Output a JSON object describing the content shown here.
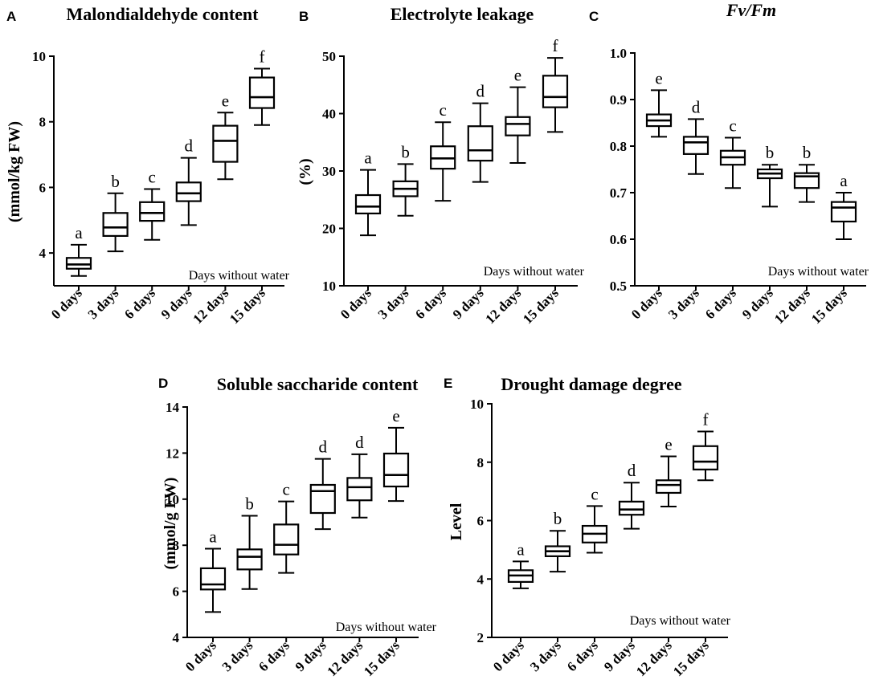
{
  "x_note": "Days without water",
  "chart_data": [
    {
      "panel": "A",
      "type": "box",
      "title": "Malondialdehyde content",
      "title_italic": false,
      "ylabel": "(mmol/kg FW)",
      "ylim": [
        3,
        10
      ],
      "yticks": [
        4,
        6,
        8,
        10
      ],
      "tick_labels": [
        "4",
        "6",
        "8",
        "10"
      ],
      "xlabel": "Days without water",
      "categories": [
        "0 days",
        "3 days",
        "6 days",
        "9 days",
        "12 days",
        "15 days"
      ],
      "boxes": [
        {
          "min": 3.3,
          "q1": 3.52,
          "median": 3.65,
          "q3": 3.85,
          "max": 4.25,
          "letter": "a"
        },
        {
          "min": 4.05,
          "q1": 4.52,
          "median": 4.78,
          "q3": 5.22,
          "max": 5.82,
          "letter": "b"
        },
        {
          "min": 4.4,
          "q1": 4.98,
          "median": 5.22,
          "q3": 5.55,
          "max": 5.95,
          "letter": "c"
        },
        {
          "min": 4.85,
          "q1": 5.58,
          "median": 5.82,
          "q3": 6.15,
          "max": 6.9,
          "letter": "d"
        },
        {
          "min": 6.25,
          "q1": 6.78,
          "median": 7.42,
          "q3": 7.88,
          "max": 8.28,
          "letter": "e"
        },
        {
          "min": 7.9,
          "q1": 8.42,
          "median": 8.75,
          "q3": 9.35,
          "max": 9.62,
          "letter": "f"
        }
      ]
    },
    {
      "panel": "B",
      "type": "box",
      "title": "Electrolyte leakage",
      "title_italic": false,
      "ylabel": "(%)",
      "ylim": [
        10,
        50
      ],
      "yticks": [
        10,
        20,
        30,
        40,
        50
      ],
      "tick_labels": [
        "10",
        "20",
        "30",
        "40",
        "50"
      ],
      "xlabel": "Days without water",
      "categories": [
        "0 days",
        "3 days",
        "6 days",
        "9 days",
        "12 days",
        "15 days"
      ],
      "boxes": [
        {
          "min": 18.8,
          "q1": 22.6,
          "median": 23.8,
          "q3": 25.8,
          "max": 30.2,
          "letter": "a"
        },
        {
          "min": 22.2,
          "q1": 25.6,
          "median": 26.9,
          "q3": 28.2,
          "max": 31.2,
          "letter": "b"
        },
        {
          "min": 24.8,
          "q1": 30.4,
          "median": 32.2,
          "q3": 34.3,
          "max": 38.5,
          "letter": "c"
        },
        {
          "min": 28.1,
          "q1": 31.8,
          "median": 33.6,
          "q3": 37.8,
          "max": 41.8,
          "letter": "d"
        },
        {
          "min": 31.4,
          "q1": 36.2,
          "median": 38.2,
          "q3": 39.4,
          "max": 44.6,
          "letter": "e"
        },
        {
          "min": 36.8,
          "q1": 41.1,
          "median": 42.9,
          "q3": 46.6,
          "max": 49.7,
          "letter": "f"
        }
      ]
    },
    {
      "panel": "C",
      "type": "box",
      "title": "Fv/Fm",
      "title_italic": true,
      "ylabel": "",
      "ylim": [
        0.5,
        1.0
      ],
      "yticks": [
        0.5,
        0.6,
        0.7,
        0.8,
        0.9,
        1.0
      ],
      "tick_labels": [
        "0.5",
        "0.6",
        "0.7",
        "0.8",
        "0.9",
        "1.0"
      ],
      "xlabel": "Days without water",
      "categories": [
        "0 days",
        "3 days",
        "6 days",
        "9 days",
        "12 days",
        "15 days"
      ],
      "boxes": [
        {
          "min": 0.82,
          "q1": 0.843,
          "median": 0.855,
          "q3": 0.868,
          "max": 0.92,
          "letter": "e"
        },
        {
          "min": 0.74,
          "q1": 0.783,
          "median": 0.808,
          "q3": 0.82,
          "max": 0.858,
          "letter": "d"
        },
        {
          "min": 0.71,
          "q1": 0.76,
          "median": 0.776,
          "q3": 0.79,
          "max": 0.818,
          "letter": "c"
        },
        {
          "min": 0.67,
          "q1": 0.731,
          "median": 0.741,
          "q3": 0.75,
          "max": 0.76,
          "letter": "b"
        },
        {
          "min": 0.68,
          "q1": 0.71,
          "median": 0.735,
          "q3": 0.742,
          "max": 0.76,
          "letter": "b"
        },
        {
          "min": 0.6,
          "q1": 0.638,
          "median": 0.668,
          "q3": 0.68,
          "max": 0.7,
          "letter": "a"
        }
      ]
    },
    {
      "panel": "D",
      "type": "box",
      "title": "Soluble  saccharide content",
      "title_italic": false,
      "ylabel": "(mmol/g FW)",
      "ylim": [
        4,
        14
      ],
      "yticks": [
        4,
        6,
        8,
        10,
        12,
        14
      ],
      "tick_labels": [
        "4",
        "6",
        "8",
        "10",
        "12",
        "14"
      ],
      "xlabel": "Days without water",
      "categories": [
        "0 days",
        "3 days",
        "6 days",
        "9 days",
        "12 days",
        "15 days"
      ],
      "boxes": [
        {
          "min": 5.1,
          "q1": 6.08,
          "median": 6.3,
          "q3": 7.0,
          "max": 7.85,
          "letter": "a"
        },
        {
          "min": 6.1,
          "q1": 6.95,
          "median": 7.5,
          "q3": 7.82,
          "max": 9.28,
          "letter": "b"
        },
        {
          "min": 6.8,
          "q1": 7.6,
          "median": 8.02,
          "q3": 8.9,
          "max": 9.9,
          "letter": "c"
        },
        {
          "min": 8.7,
          "q1": 9.4,
          "median": 10.35,
          "q3": 10.62,
          "max": 11.75,
          "letter": "d"
        },
        {
          "min": 9.2,
          "q1": 9.95,
          "median": 10.52,
          "q3": 10.92,
          "max": 11.95,
          "letter": "d"
        },
        {
          "min": 9.92,
          "q1": 10.55,
          "median": 11.05,
          "q3": 11.98,
          "max": 13.1,
          "letter": "e"
        }
      ]
    },
    {
      "panel": "E",
      "type": "box",
      "title": "Drought damage degree",
      "title_italic": false,
      "ylabel": "Level",
      "ylim": [
        2,
        10
      ],
      "yticks": [
        2,
        4,
        6,
        8,
        10
      ],
      "tick_labels": [
        "2",
        "4",
        "6",
        "8",
        "10"
      ],
      "xlabel": "Days without water",
      "categories": [
        "0 days",
        "3 days",
        "6 days",
        "9 days",
        "12 days",
        "15 days"
      ],
      "boxes": [
        {
          "min": 3.68,
          "q1": 3.9,
          "median": 4.12,
          "q3": 4.3,
          "max": 4.6,
          "letter": "a"
        },
        {
          "min": 4.25,
          "q1": 4.78,
          "median": 4.95,
          "q3": 5.12,
          "max": 5.65,
          "letter": "b"
        },
        {
          "min": 4.9,
          "q1": 5.25,
          "median": 5.55,
          "q3": 5.82,
          "max": 6.5,
          "letter": "c"
        },
        {
          "min": 5.72,
          "q1": 6.2,
          "median": 6.38,
          "q3": 6.65,
          "max": 7.3,
          "letter": "d"
        },
        {
          "min": 6.48,
          "q1": 6.95,
          "median": 7.22,
          "q3": 7.38,
          "max": 8.2,
          "letter": "e"
        },
        {
          "min": 7.38,
          "q1": 7.75,
          "median": 8.02,
          "q3": 8.55,
          "max": 9.05,
          "letter": "f"
        }
      ]
    }
  ]
}
